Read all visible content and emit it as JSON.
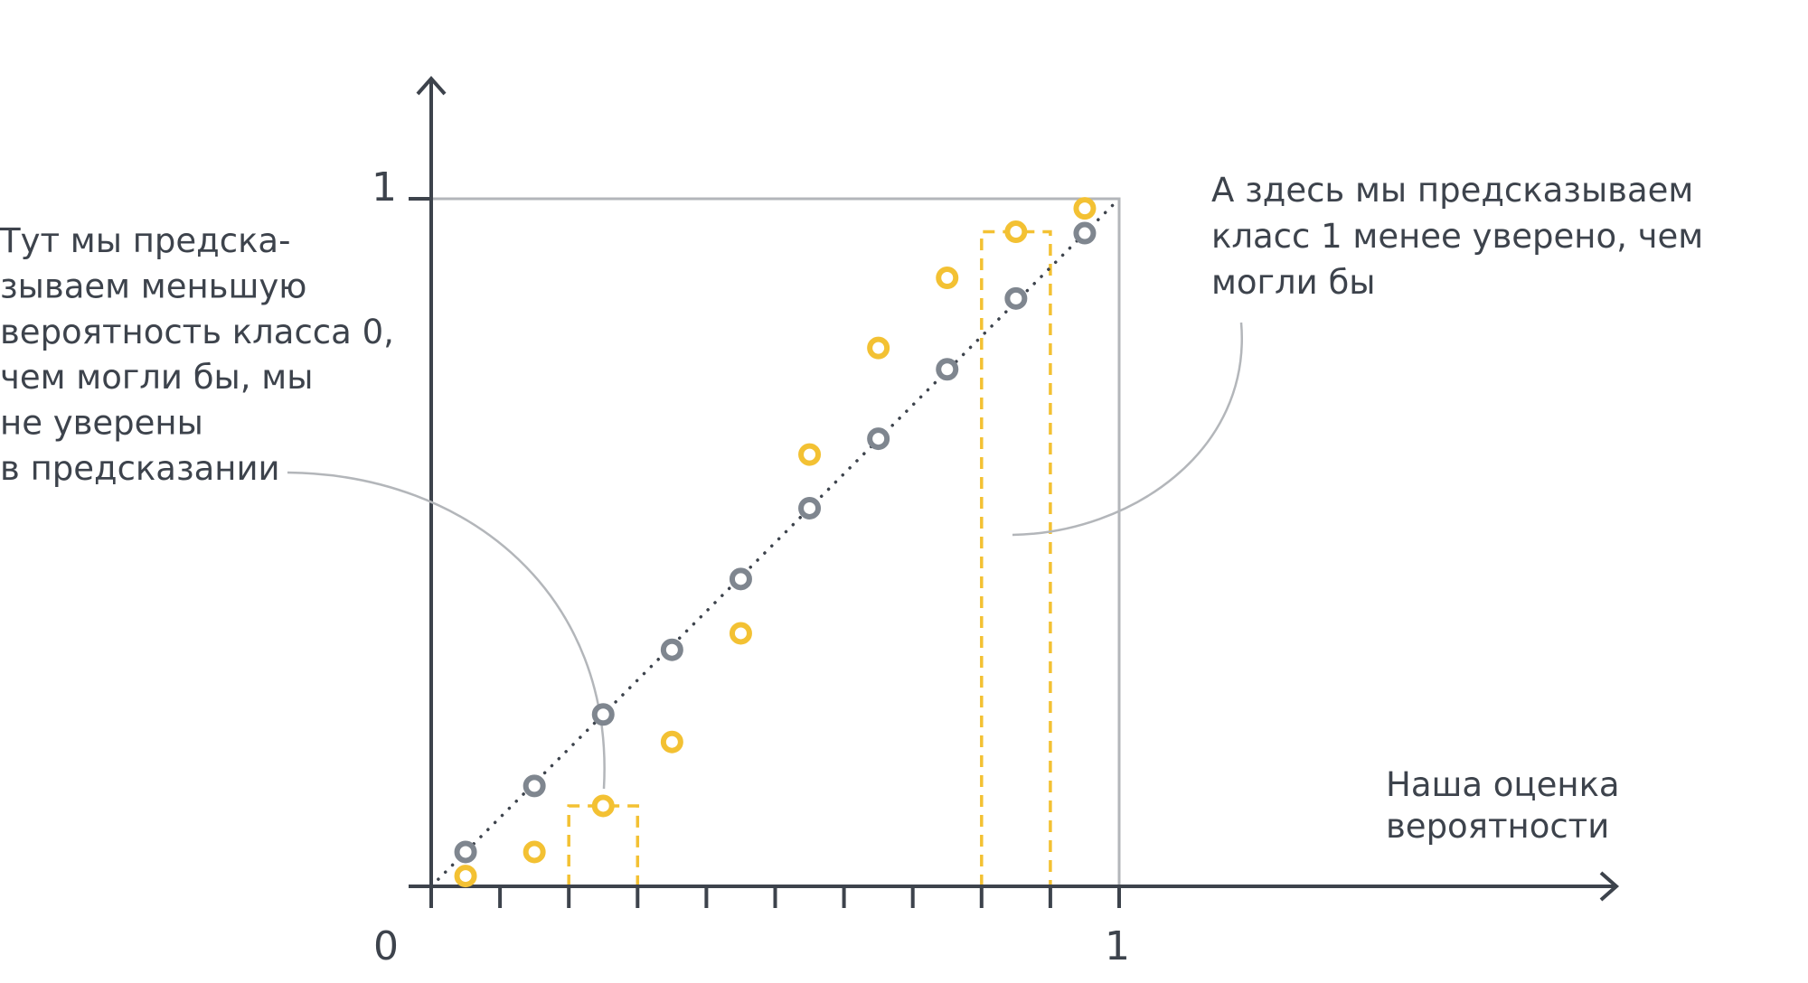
{
  "chart_data": {
    "type": "scatter",
    "xlim": [
      0,
      1
    ],
    "ylim": [
      0,
      1
    ],
    "x_tick_labels": [
      "0",
      "1"
    ],
    "y_tick_labels": [
      "1"
    ],
    "xlabel_lines": [
      "Наша оценка",
      "вероятности"
    ],
    "x_tick_count": 10,
    "grid": false,
    "series": [
      {
        "color": "#7f868f",
        "x": [
          0.05,
          0.15,
          0.25,
          0.35,
          0.45,
          0.55,
          0.65,
          0.75,
          0.85,
          0.95
        ],
        "y": [
          0.05,
          0.146,
          0.25,
          0.344,
          0.447,
          0.55,
          0.651,
          0.752,
          0.855,
          0.95
        ]
      },
      {
        "color": "#f3c133",
        "x": [
          0.05,
          0.15,
          0.25,
          0.35,
          0.45,
          0.55,
          0.65,
          0.75,
          0.85,
          0.95
        ],
        "y": [
          0.015,
          0.05,
          0.117,
          0.21,
          0.368,
          0.628,
          0.783,
          0.885,
          0.952,
          0.986
        ]
      }
    ],
    "dashed_bins": [
      [
        0.2,
        0.3
      ],
      [
        0.8,
        0.9
      ]
    ],
    "diagonal": true,
    "annotations": [
      {
        "lines": [
          "Тут мы предска-",
          "зываем меньшую",
          "вероятность класса 0,",
          "чем могли бы, мы",
          "не уверены",
          "в предсказании"
        ],
        "target_bin": 0
      },
      {
        "lines": [
          "А здесь мы предсказываем",
          "класс 1 менее уверено, чем",
          "могли бы"
        ],
        "target_bin": 1
      }
    ]
  },
  "colors": {
    "axis": "#3d434c",
    "frame": "#b3b6ba",
    "dotted": "#3d434c",
    "leader": "#b3b6ba",
    "gray_point": "#7f868f",
    "yellow_point": "#f3c133"
  }
}
